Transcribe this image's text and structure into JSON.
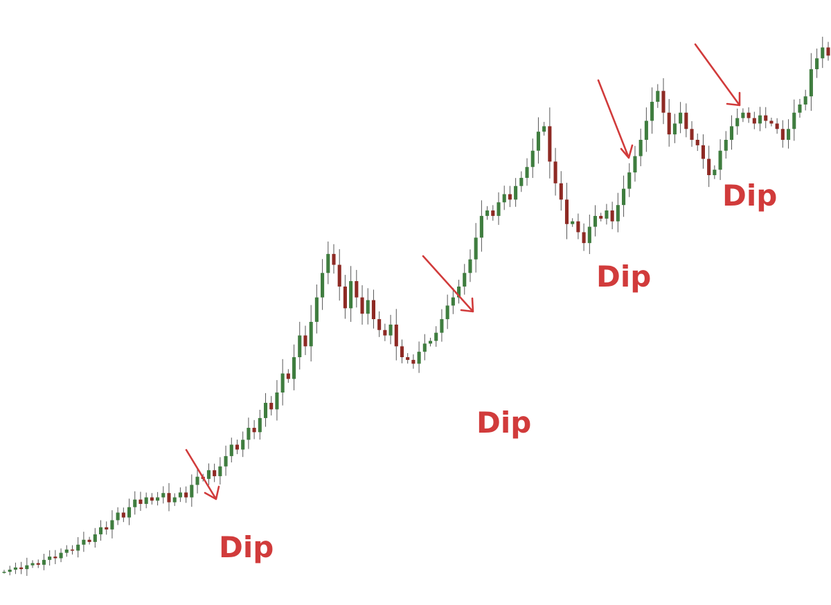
{
  "chart_data": {
    "type": "candlestick",
    "title": "",
    "xlabel": "",
    "ylabel": "",
    "axes_visible": false,
    "grid": false,
    "ylim": [
      0,
      100
    ],
    "colors": {
      "up": "#3f7d3f",
      "down": "#8e2a24",
      "wick": "#555555",
      "annotation": "#d13b3b"
    },
    "series": [
      {
        "values": [
          0.5,
          0.9,
          1.3,
          1.0,
          1.7,
          2.1,
          1.8,
          2.7,
          3.3,
          3.0,
          4.0,
          4.6,
          4.4,
          5.5,
          6.4,
          6.0,
          7.4,
          8.7,
          8.3,
          10.0,
          11.4,
          10.5,
          12.4,
          13.8,
          13.0,
          14.2,
          13.6,
          14.2,
          15.0,
          13.3,
          14.2,
          15.1,
          14.2,
          16.5,
          18.0,
          17.6,
          19.2,
          18.1,
          19.9,
          21.8,
          23.9,
          23.0,
          24.8,
          27.0,
          26.2,
          28.8,
          31.6,
          30.4,
          33.5,
          37.0,
          36.0,
          40.0,
          44.0,
          42.0,
          46.5,
          51.0,
          55.5,
          59.0,
          57.0,
          53.0,
          49.0,
          54.0,
          51.0,
          48.0,
          50.5,
          47.0,
          45.0,
          44.0,
          46.0,
          42.0,
          40.0,
          39.5,
          38.8,
          41.0,
          42.5,
          43.0,
          44.5,
          47.0,
          49.5,
          51.0,
          53.0,
          55.5,
          58.0,
          62.0,
          66.0,
          67.0,
          66.0,
          68.5,
          70.0,
          69.0,
          71.5,
          73.0,
          75.0,
          78.0,
          81.5,
          82.5,
          76.0,
          72.0,
          69.0,
          64.5,
          65.0,
          63.0,
          61.0,
          64.0,
          66.0,
          65.5,
          67.0,
          65.0,
          68.0,
          71.0,
          74.0,
          77.0,
          80.0,
          83.5,
          87.0,
          89.0,
          85.0,
          81.0,
          83.0,
          85.0,
          82.0,
          80.0,
          79.0,
          76.5,
          73.5,
          74.5,
          78.0,
          80.0,
          82.5,
          84.0,
          85.0,
          84.0,
          83.0,
          84.5,
          83.5,
          83.0,
          82.0,
          80.0,
          82.0,
          85.0,
          86.5,
          88.0,
          93.0,
          95.0,
          97.0,
          95.5
        ]
      }
    ],
    "annotations": [
      {
        "text": "Dip"
      },
      {
        "text": "Dip"
      },
      {
        "text": "Dip"
      },
      {
        "text": "Dip"
      }
    ]
  }
}
